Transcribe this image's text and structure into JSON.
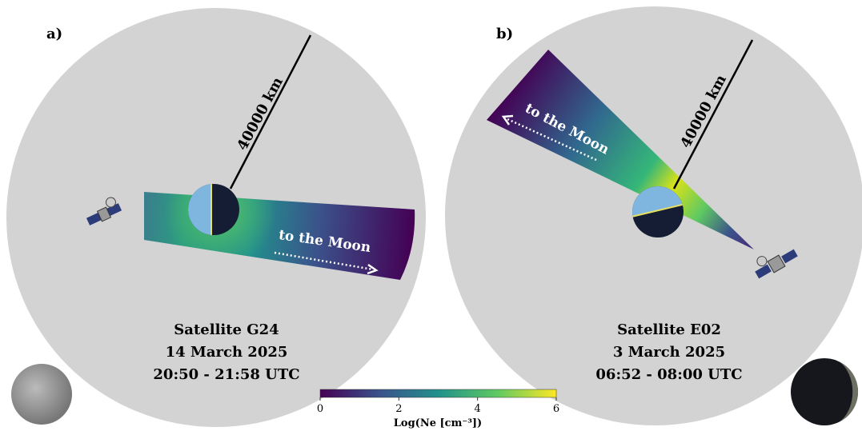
{
  "panels": [
    {
      "label": "a)",
      "distance": "40000 km",
      "direction": "to the Moon",
      "satellite": "Satellite G24",
      "date": "14 March 2025",
      "time": "20:50 - 21:58 UTC"
    },
    {
      "label": "b)",
      "distance": "40000 km",
      "direction": "to the Moon",
      "satellite": "Satellite E02",
      "date": "3 March 2025",
      "time": "06:52 - 08:00 UTC"
    }
  ],
  "colorbar": {
    "label": "Log(Ne  [cm⁻³])",
    "lim": [
      0,
      6
    ],
    "ticks": [
      0,
      2,
      4,
      6
    ]
  }
}
